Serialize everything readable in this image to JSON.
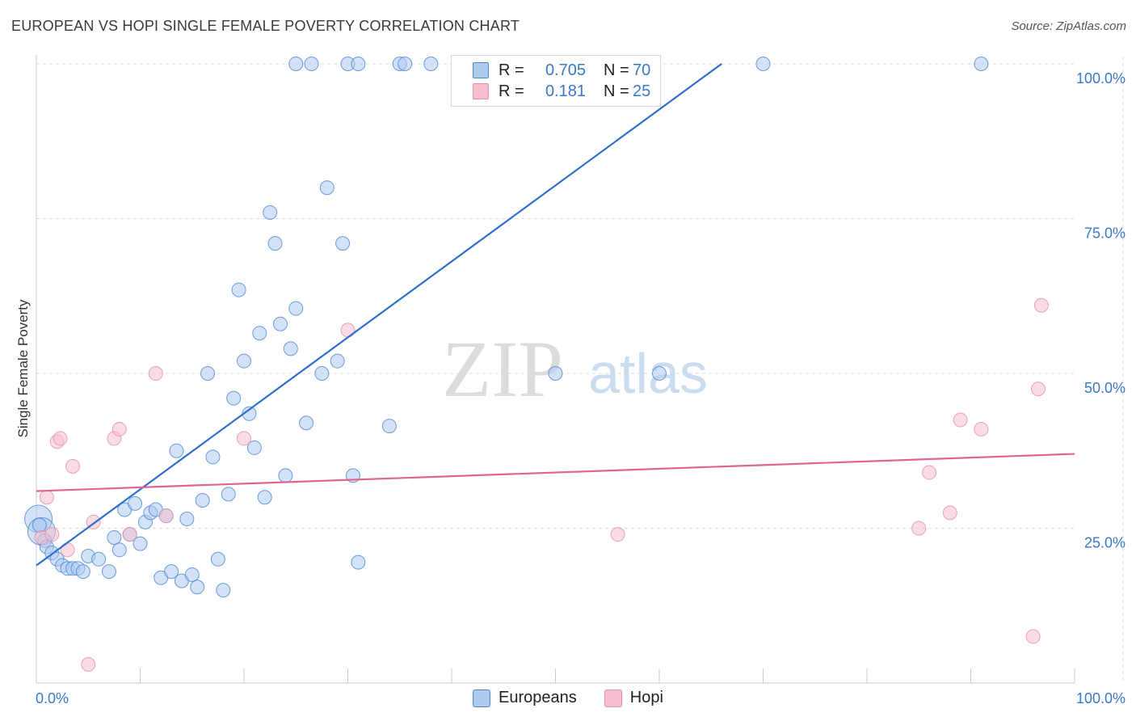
{
  "header": {
    "title": "EUROPEAN VS HOPI SINGLE FEMALE POVERTY CORRELATION CHART",
    "source": "Source: ZipAtlas.com"
  },
  "watermark": {
    "part1": "ZIP",
    "part2": "atlas"
  },
  "legend": {
    "rows": [
      {
        "r_label": "R =",
        "r_value": "0.705",
        "n_label": "N =",
        "n_value": "70"
      },
      {
        "r_label": "R =",
        "r_value": "0.181",
        "n_label": "N =",
        "n_value": "25"
      }
    ]
  },
  "bottom_legend": {
    "europeans": "Europeans",
    "hopi": "Hopi"
  },
  "colors": {
    "europeans_fill": "#aecbef",
    "europeans_stroke": "#4a86d4",
    "europeans_line": "#2f6fcc",
    "hopi_fill": "#f6bfd0",
    "hopi_stroke": "#e58ca8",
    "hopi_line": "#e0648e",
    "axis_value_text": "#3a78c9",
    "grid": "#dcdcdc"
  },
  "chart_data": {
    "type": "scatter",
    "title": "EUROPEAN VS HOPI SINGLE FEMALE POVERTY CORRELATION CHART",
    "xlabel": "",
    "ylabel": "Single Female Poverty",
    "xlim": [
      0,
      100
    ],
    "ylim": [
      0,
      100
    ],
    "x_tick_labels": [
      "0.0%",
      "100.0%"
    ],
    "y_tick_labels": [
      "100.0%",
      "75.0%",
      "50.0%",
      "25.0%"
    ],
    "y_ticks": [
      100,
      75,
      50,
      25
    ],
    "grid": true,
    "legend_position": "top-center",
    "series": [
      {
        "name": "Europeans",
        "R": 0.705,
        "N": 70,
        "trend": {
          "x0": 0,
          "y0": 19,
          "x1": 66,
          "y1": 100
        },
        "points": [
          [
            0.2,
            26.5
          ],
          [
            0.5,
            24.5
          ],
          [
            0.8,
            23
          ],
          [
            1,
            22
          ],
          [
            1.5,
            21
          ],
          [
            2,
            20
          ],
          [
            2.5,
            19
          ],
          [
            3,
            18.5
          ],
          [
            3.5,
            18.5
          ],
          [
            4,
            18.5
          ],
          [
            4.5,
            18
          ],
          [
            5,
            20.5
          ],
          [
            6,
            20
          ],
          [
            7,
            18
          ],
          [
            7.5,
            23.5
          ],
          [
            8,
            21.5
          ],
          [
            8.5,
            28
          ],
          [
            9,
            24
          ],
          [
            9.5,
            29
          ],
          [
            10,
            22.5
          ],
          [
            10.5,
            26
          ],
          [
            11,
            27.5
          ],
          [
            11.5,
            28
          ],
          [
            12,
            17
          ],
          [
            12.5,
            27
          ],
          [
            13,
            18
          ],
          [
            13.5,
            37.5
          ],
          [
            14,
            16.5
          ],
          [
            14.5,
            26.5
          ],
          [
            15,
            17.5
          ],
          [
            15.5,
            15.5
          ],
          [
            16,
            29.5
          ],
          [
            16.5,
            50
          ],
          [
            17,
            36.5
          ],
          [
            17.5,
            20
          ],
          [
            18,
            15
          ],
          [
            18.5,
            30.5
          ],
          [
            19,
            46
          ],
          [
            19.5,
            63.5
          ],
          [
            20,
            52
          ],
          [
            20.5,
            43.5
          ],
          [
            21,
            38
          ],
          [
            21.5,
            56.5
          ],
          [
            22,
            30
          ],
          [
            22.5,
            76
          ],
          [
            23,
            71
          ],
          [
            23.5,
            58
          ],
          [
            24,
            33.5
          ],
          [
            24.5,
            54
          ],
          [
            25,
            60.5
          ],
          [
            25,
            100
          ],
          [
            26,
            42
          ],
          [
            26.5,
            100
          ],
          [
            27.5,
            50
          ],
          [
            28,
            80
          ],
          [
            29,
            52
          ],
          [
            29.5,
            71
          ],
          [
            30,
            100
          ],
          [
            30.5,
            33.5
          ],
          [
            31,
            100
          ],
          [
            31,
            19.5
          ],
          [
            34,
            41.5
          ],
          [
            35,
            100
          ],
          [
            35.5,
            100
          ],
          [
            38,
            100
          ],
          [
            50,
            50
          ],
          [
            60,
            50
          ],
          [
            70,
            100
          ],
          [
            91,
            100
          ],
          [
            0.3,
            25.5
          ]
        ]
      },
      {
        "name": "Hopi",
        "R": 0.181,
        "N": 25,
        "trend": {
          "x0": 0,
          "y0": 31,
          "x1": 100,
          "y1": 37
        },
        "points": [
          [
            0.5,
            23.5
          ],
          [
            1,
            30
          ],
          [
            1.5,
            24
          ],
          [
            2,
            39
          ],
          [
            2.3,
            39.5
          ],
          [
            3,
            21.5
          ],
          [
            3.5,
            35
          ],
          [
            5,
            3
          ],
          [
            5.5,
            26
          ],
          [
            7.5,
            39.5
          ],
          [
            8,
            41
          ],
          [
            9,
            24
          ],
          [
            11.5,
            50
          ],
          [
            12.5,
            27
          ],
          [
            20,
            39.5
          ],
          [
            30,
            57
          ],
          [
            56,
            24
          ],
          [
            85,
            25
          ],
          [
            86,
            34
          ],
          [
            88,
            27.5
          ],
          [
            89,
            42.5
          ],
          [
            91,
            41
          ],
          [
            96,
            7.5
          ],
          [
            96.5,
            47.5
          ],
          [
            96.8,
            61
          ]
        ]
      }
    ]
  }
}
